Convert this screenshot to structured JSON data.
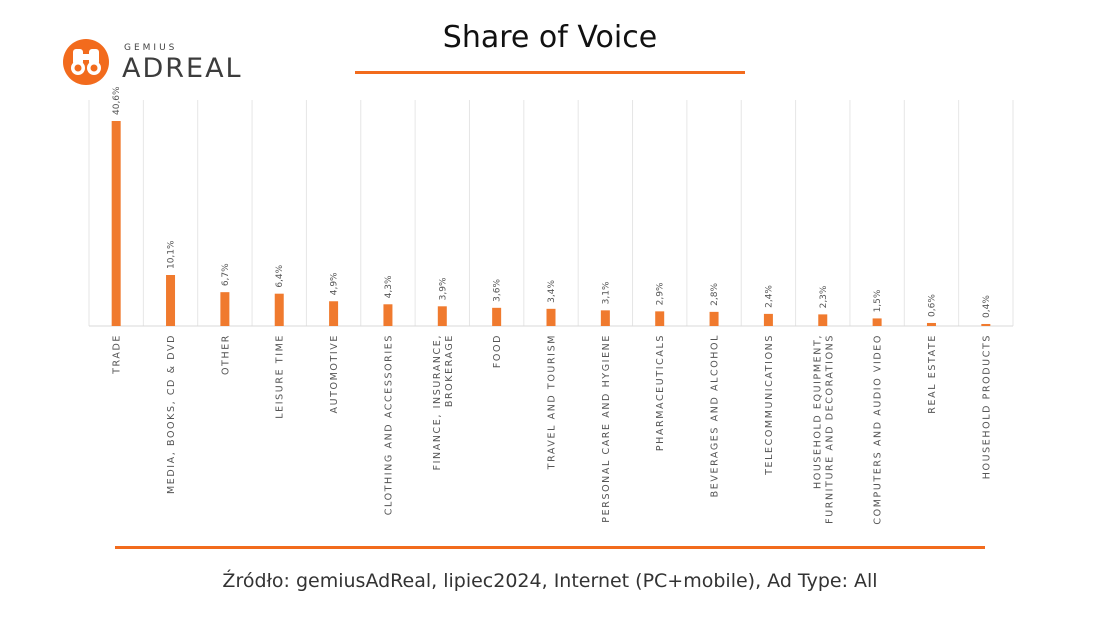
{
  "header": {
    "title": "Share of Voice",
    "accent_color": "#f26b1d"
  },
  "logo": {
    "brand_top": "GEMIUS",
    "brand_main": "ADREAL",
    "icon": "binoculars-icon"
  },
  "chart_data": {
    "type": "bar",
    "categories": [
      "TRADE",
      "MEDIA, BOOKS, CD & DVD",
      "OTHER",
      "LEISURE TIME",
      "AUTOMOTIVE",
      "CLOTHING AND ACCESSORIES",
      [
        "FINANCE, INSURANCE,",
        "BROKERAGE"
      ],
      "FOOD",
      "TRAVEL AND TOURISM",
      "PERSONAL CARE AND HYGIENE",
      "PHARMACEUTICALS",
      "BEVERAGES AND ALCOHOL",
      "TELECOMMUNICATIONS",
      [
        "HOUSEHOLD EQUIPMENT,",
        "FURNITURE AND DECORATIONS"
      ],
      "COMPUTERS AND AUDIO VIDEO",
      "REAL ESTATE",
      "HOUSEHOLD PRODUCTS"
    ],
    "values": [
      40.6,
      10.1,
      6.7,
      6.4,
      4.9,
      4.3,
      3.9,
      3.6,
      3.4,
      3.1,
      2.9,
      2.8,
      2.4,
      2.3,
      1.5,
      0.6,
      0.4
    ],
    "data_labels": [
      "40,6%",
      "10,1%",
      "6,7%",
      "6,4%",
      "4,9%",
      "4,3%",
      "3,9%",
      "3,6%",
      "3,4%",
      "3,1%",
      "2,9%",
      "2,8%",
      "2,4%",
      "2,3%",
      "1,5%",
      "0,6%",
      "0,4%"
    ],
    "title": "Share of Voice",
    "xlabel": "",
    "ylabel": "",
    "ylim": [
      0,
      45
    ],
    "grid": "vertical separators",
    "bar_color": "#f07a2e"
  },
  "footer": {
    "source": "Źródło: gemiusAdReal, lipiec2024, Internet (PC+mobile), Ad Type: All"
  }
}
